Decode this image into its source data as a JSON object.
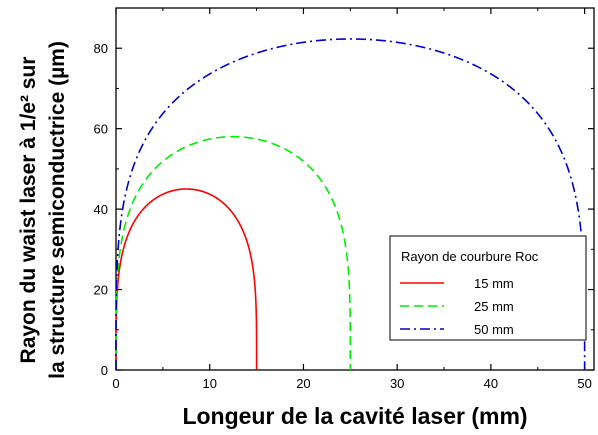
{
  "chart_data": {
    "type": "line",
    "xlabel": "Longeur de la cavité laser (mm)",
    "ylabel_line1": "Rayon du waist laser à 1/e² sur",
    "ylabel_line2": "la structure semiconductrice (µm)",
    "xlim": [
      0,
      51
    ],
    "ylim": [
      0,
      90
    ],
    "xticks": [
      0,
      10,
      20,
      30,
      40,
      50
    ],
    "yticks": [
      0,
      20,
      40,
      60,
      80
    ],
    "legend_title": "Rayon de courbure Roc",
    "legend_position": "bottom-right",
    "grid": false,
    "series": [
      {
        "name": "15 mm",
        "roc": 15,
        "color": "#ff0000",
        "dash": "solid",
        "peak_y": 45
      },
      {
        "name": "25 mm",
        "roc": 25,
        "color": "#00ee00",
        "dash": "dashed",
        "peak_y": 58
      },
      {
        "name": "50 mm",
        "roc": 50,
        "color": "#0000cc",
        "dash": "dashdot",
        "peak_y": 82.3
      }
    ]
  }
}
